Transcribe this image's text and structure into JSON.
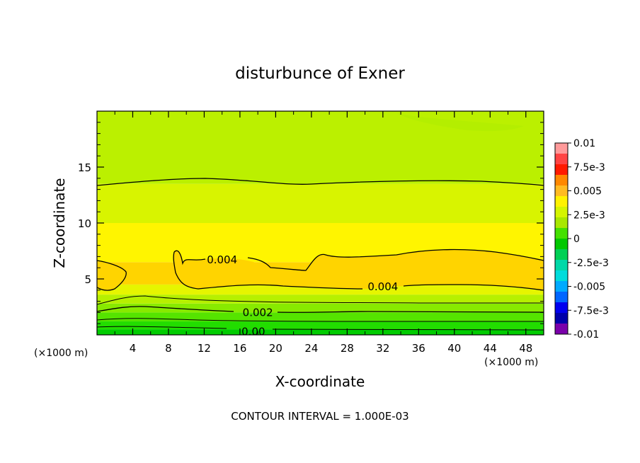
{
  "chart_data": {
    "type": "heatmap",
    "title": "disturbunce of Exner",
    "xlabel": "X-coordinate",
    "ylabel": "Z-coordinate",
    "x_unit": "(×1000 m)",
    "x_unit_right": "(×1000 m)",
    "xlim": [
      0,
      50
    ],
    "ylim": [
      0,
      20
    ],
    "x_ticks": [
      4,
      8,
      12,
      16,
      20,
      24,
      28,
      32,
      36,
      40,
      44,
      48
    ],
    "y_ticks": [
      5,
      10,
      15
    ],
    "footer": "CONTOUR INTERVAL = 1.000E-03",
    "contour_interval": 0.001,
    "contour_labels": [
      {
        "text": "0.004",
        "x": 14,
        "z": 6.7
      },
      {
        "text": "0.004",
        "x": 32,
        "z": 4.3
      },
      {
        "text": "0.002",
        "x": 18,
        "z": 2.0
      },
      {
        "text": "0.00",
        "x": 17.5,
        "z": 0.3
      }
    ],
    "colorbar": {
      "labels": [
        "0.01",
        "7.5e-3",
        "0.005",
        "2.5e-3",
        "0",
        "-2.5e-3",
        "-0.005",
        "-7.5e-3",
        "-0.01"
      ],
      "colors": [
        "#ff9a9a",
        "#ff4444",
        "#ff1a00",
        "#ff8800",
        "#ffbb22",
        "#fff200",
        "#d5f500",
        "#a8e800",
        "#44e000",
        "#00c800",
        "#00d055",
        "#00d8a8",
        "#00dcdc",
        "#00aaff",
        "#0066ff",
        "#0000ee",
        "#0000aa",
        "#7a00aa"
      ]
    },
    "field_bands": [
      {
        "z_min": 0.0,
        "z_max": 0.5,
        "color": "#00cc00"
      },
      {
        "z_min": 0.5,
        "z_max": 1.2,
        "color": "#22dd00"
      },
      {
        "z_min": 1.2,
        "z_max": 2.0,
        "color": "#55e400"
      },
      {
        "z_min": 2.0,
        "z_max": 2.8,
        "color": "#88ea00"
      },
      {
        "z_min": 2.8,
        "z_max": 3.6,
        "color": "#b6f000"
      },
      {
        "z_min": 3.6,
        "z_max": 4.5,
        "color": "#e6f500"
      },
      {
        "z_min": 4.5,
        "z_max": 6.5,
        "color": "#ffd400"
      },
      {
        "z_min": 6.5,
        "z_max": 10.0,
        "color": "#fff500"
      },
      {
        "z_min": 10.0,
        "z_max": 13.5,
        "color": "#d8f400"
      },
      {
        "z_min": 13.5,
        "z_max": 20.0,
        "color": "#bbf000"
      }
    ]
  }
}
